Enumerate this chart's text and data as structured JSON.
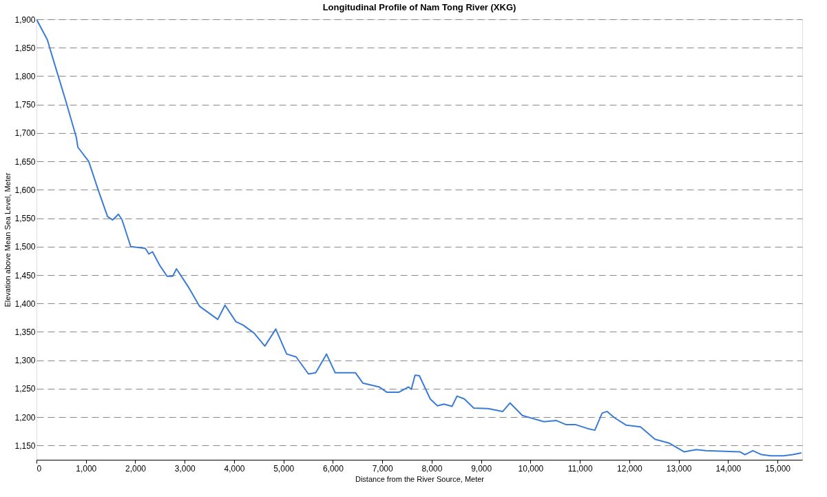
{
  "chart_data": {
    "type": "line",
    "title": "Longitudinal Profile of Nam Tong River (XKG)",
    "xlabel": "Distance from the River Source, Meter",
    "ylabel": "Elevation above Mean Sea Level, Meter",
    "xlim": [
      0,
      15500
    ],
    "xticks": [
      0,
      {
        "value": 1000,
        "label": "1,000"
      },
      {
        "value": 2000,
        "label": "2,000"
      },
      {
        "value": 3000,
        "label": "3,000"
      },
      {
        "value": 4000,
        "label": "4,000"
      },
      {
        "value": 5000,
        "label": "5,000"
      },
      {
        "value": 6000,
        "label": "6,000"
      },
      {
        "value": 7000,
        "label": "7,000"
      },
      {
        "value": 8000,
        "label": "8,000"
      },
      {
        "value": 9000,
        "label": "9,000"
      },
      {
        "value": 10000,
        "label": "10,000"
      },
      {
        "value": 11000,
        "label": "11,000"
      },
      {
        "value": 12000,
        "label": "12,000"
      },
      {
        "value": 13000,
        "label": "13,000"
      },
      {
        "value": 14000,
        "label": "14,000"
      },
      {
        "value": 15000,
        "label": "15,000"
      }
    ],
    "ylim": [
      1125,
      1900
    ],
    "yticks": [
      {
        "value": 1150,
        "label": "1,150"
      },
      {
        "value": 1200,
        "label": "1,200"
      },
      {
        "value": 1250,
        "label": "1,250"
      },
      {
        "value": 1300,
        "label": "1,300"
      },
      {
        "value": 1350,
        "label": "1,350"
      },
      {
        "value": 1400,
        "label": "1,400"
      },
      {
        "value": 1450,
        "label": "1,450"
      },
      {
        "value": 1500,
        "label": "1,500"
      },
      {
        "value": 1550,
        "label": "1,550"
      },
      {
        "value": 1600,
        "label": "1,600"
      },
      {
        "value": 1650,
        "label": "1,650"
      },
      {
        "value": 1700,
        "label": "1,700"
      },
      {
        "value": 1750,
        "label": "1,750"
      },
      {
        "value": 1800,
        "label": "1,800"
      },
      {
        "value": 1850,
        "label": "1,850"
      },
      {
        "value": 1900,
        "label": "1,900"
      }
    ],
    "grid": "y",
    "marker": "none",
    "line_style": "solid",
    "series": [
      {
        "color": "#3a7bd5",
        "x": [
          0,
          220,
          294,
          367,
          587,
          807,
          837,
          1057,
          1248,
          1438,
          1541,
          1659,
          1732,
          1908,
          2202,
          2275,
          2348,
          2495,
          2642,
          2759,
          2833,
          3082,
          3302,
          3669,
          3816,
          4036,
          4183,
          4403,
          4623,
          4844,
          5064,
          5255,
          5505,
          5652,
          5871,
          6047,
          6458,
          6605,
          6943,
          7089,
          7339,
          7530,
          7588,
          7662,
          7750,
          7970,
          8117,
          8249,
          8411,
          8513,
          8660,
          8851,
          9144,
          9438,
          9585,
          9834,
          10274,
          10524,
          10715,
          10906,
          11155,
          11302,
          11449,
          11552,
          11699,
          11933,
          12227,
          12520,
          12814,
          13107,
          13357,
          13548,
          14238,
          14340,
          14502,
          14678,
          14869,
          15118,
          15309,
          15485
        ],
        "values": [
          1900,
          1864,
          1842,
          1821,
          1758,
          1692,
          1675,
          1650,
          1600,
          1553,
          1547,
          1557,
          1547,
          1500,
          1497,
          1487,
          1491,
          1467,
          1448,
          1448,
          1461,
          1428,
          1395,
          1372,
          1397,
          1368,
          1362,
          1348,
          1325,
          1355,
          1311,
          1306,
          1276,
          1278,
          1311,
          1278,
          1278,
          1260,
          1253,
          1244,
          1244,
          1253,
          1249,
          1274,
          1273,
          1232,
          1220,
          1223,
          1219,
          1237,
          1232,
          1216,
          1215,
          1210,
          1225,
          1203,
          1192,
          1194,
          1187,
          1187,
          1180,
          1177,
          1207,
          1210,
          1199,
          1186,
          1183,
          1161,
          1154,
          1139,
          1143,
          1141,
          1139,
          1134,
          1141,
          1134,
          1132,
          1132,
          1134,
          1137
        ]
      }
    ]
  }
}
